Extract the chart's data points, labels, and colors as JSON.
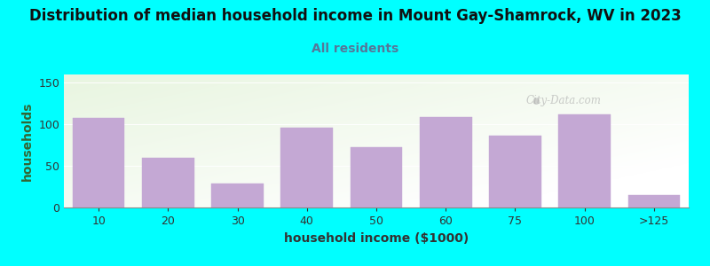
{
  "title": "Distribution of median household income in Mount Gay-Shamrock, WV in 2023",
  "subtitle": "All residents",
  "xlabel": "household income ($1000)",
  "ylabel": "households",
  "background_color": "#00FFFF",
  "bar_color": "#C4A8D4",
  "categories": [
    "10",
    "20",
    "30",
    "40",
    "50",
    "60",
    "75",
    "100",
    ">125"
  ],
  "values": [
    108,
    60,
    29,
    96,
    73,
    109,
    86,
    112,
    15
  ],
  "ylim": [
    0,
    160
  ],
  "yticks": [
    0,
    50,
    100,
    150
  ],
  "title_fontsize": 12,
  "subtitle_fontsize": 10,
  "subtitle_color": "#557799",
  "axis_label_fontsize": 10,
  "tick_fontsize": 9,
  "watermark": "City-Data.com",
  "bar_width": 0.75,
  "grid_color": "#cccccc",
  "ylabel_color": "#336633",
  "xlabel_color": "#333333",
  "title_color": "#111111"
}
